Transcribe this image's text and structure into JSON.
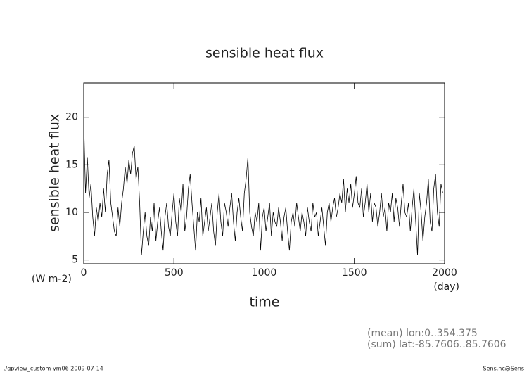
{
  "chart_data": {
    "type": "line",
    "title": "sensible heat flux",
    "y_label": "sensible heat flux",
    "y_units": "(W m-2)",
    "x_label": "time",
    "x_units": "(day)",
    "annotations": [
      "(mean) lon:0..354.375",
      "(sum) lat:-85.7606..85.7606"
    ],
    "footer_left": "./gpview_custom-ym06  2009-07-14",
    "footer_right": "Sens.nc@Sens",
    "xlim": [
      0,
      2000
    ],
    "xticks": [
      0,
      500,
      1000,
      1500,
      2000
    ],
    "ylim": [
      4.6,
      23.6
    ],
    "yticks": [
      5,
      10,
      15,
      20
    ],
    "x": [
      0,
      10,
      20,
      30,
      40,
      50,
      60,
      70,
      80,
      90,
      100,
      110,
      120,
      130,
      140,
      150,
      160,
      170,
      180,
      190,
      200,
      210,
      220,
      230,
      240,
      250,
      260,
      270,
      280,
      290,
      300,
      310,
      320,
      330,
      340,
      350,
      360,
      370,
      380,
      390,
      400,
      410,
      420,
      430,
      440,
      450,
      460,
      470,
      480,
      490,
      500,
      510,
      520,
      530,
      540,
      550,
      560,
      570,
      580,
      590,
      600,
      610,
      620,
      630,
      640,
      650,
      660,
      670,
      680,
      690,
      700,
      710,
      720,
      730,
      740,
      750,
      760,
      770,
      780,
      790,
      800,
      810,
      820,
      830,
      840,
      850,
      860,
      870,
      880,
      890,
      900,
      910,
      920,
      930,
      940,
      950,
      960,
      970,
      980,
      990,
      1000,
      1010,
      1020,
      1030,
      1040,
      1050,
      1060,
      1070,
      1080,
      1090,
      1100,
      1110,
      1120,
      1130,
      1140,
      1150,
      1160,
      1170,
      1180,
      1190,
      1200,
      1210,
      1220,
      1230,
      1240,
      1250,
      1260,
      1270,
      1280,
      1290,
      1300,
      1310,
      1320,
      1330,
      1340,
      1350,
      1360,
      1370,
      1380,
      1390,
      1400,
      1410,
      1420,
      1430,
      1440,
      1450,
      1460,
      1470,
      1480,
      1490,
      1500,
      1510,
      1520,
      1530,
      1540,
      1550,
      1560,
      1570,
      1580,
      1590,
      1600,
      1610,
      1620,
      1630,
      1640,
      1650,
      1660,
      1670,
      1680,
      1690,
      1700,
      1710,
      1720,
      1730,
      1740,
      1750,
      1760,
      1770,
      1780,
      1790,
      1800,
      1810,
      1820,
      1830,
      1840,
      1850,
      1860,
      1870,
      1880,
      1890,
      1900,
      1910,
      1920,
      1930,
      1940,
      1950,
      1960,
      1970,
      1980,
      1990
    ],
    "series": [
      {
        "color": "#000000",
        "values": [
          19.5,
          12,
          15.8,
          11.5,
          13,
          9.5,
          7.5,
          10.5,
          9,
          11,
          9.5,
          12.5,
          10,
          14,
          15.5,
          11,
          9.5,
          8,
          7.5,
          10.5,
          8.5,
          11,
          12.5,
          14.8,
          13,
          15.5,
          14,
          16.2,
          17,
          13.5,
          14.8,
          11,
          5.5,
          8,
          10,
          7.5,
          6.5,
          9.5,
          8,
          11,
          7,
          9,
          10.5,
          8,
          6,
          9.5,
          11,
          8.5,
          7.5,
          10,
          12,
          9,
          7.5,
          11.5,
          10,
          13,
          8,
          9.5,
          12.5,
          14,
          11,
          8.5,
          6,
          10,
          9,
          11.5,
          7.5,
          9,
          10.5,
          8,
          9.5,
          11,
          8,
          6.5,
          10,
          12,
          9,
          7.5,
          11,
          10,
          8.5,
          10.5,
          12,
          9,
          7,
          10,
          11.5,
          9.5,
          8,
          12,
          13.5,
          15.8,
          10,
          8.5,
          7.5,
          10,
          9,
          11,
          6,
          9.5,
          10.5,
          8,
          9.5,
          11,
          7.5,
          10,
          9,
          8.5,
          10.5,
          9,
          7,
          9.5,
          10.5,
          8,
          6,
          9,
          10,
          8.5,
          11,
          9.5,
          8,
          10,
          9,
          7.5,
          10.5,
          9,
          8,
          11,
          9.5,
          10,
          7.5,
          9,
          10.5,
          8.5,
          6.5,
          10,
          11,
          9,
          10.5,
          11.5,
          9.5,
          10.5,
          12,
          11,
          13.5,
          10,
          12.5,
          11,
          13,
          10.5,
          12,
          13.8,
          11,
          10.5,
          12.5,
          9.5,
          11,
          13,
          10,
          12,
          9,
          11,
          10.5,
          8.5,
          10,
          12,
          9.5,
          10.5,
          8,
          11,
          10,
          12,
          9,
          11.5,
          10.5,
          8.5,
          11,
          13,
          10,
          9.5,
          11,
          8,
          10.5,
          12.5,
          9,
          5.5,
          12,
          10,
          7,
          9.5,
          11,
          13.5,
          9,
          8,
          12.5,
          14,
          10,
          8.5,
          13,
          12
        ]
      }
    ]
  }
}
